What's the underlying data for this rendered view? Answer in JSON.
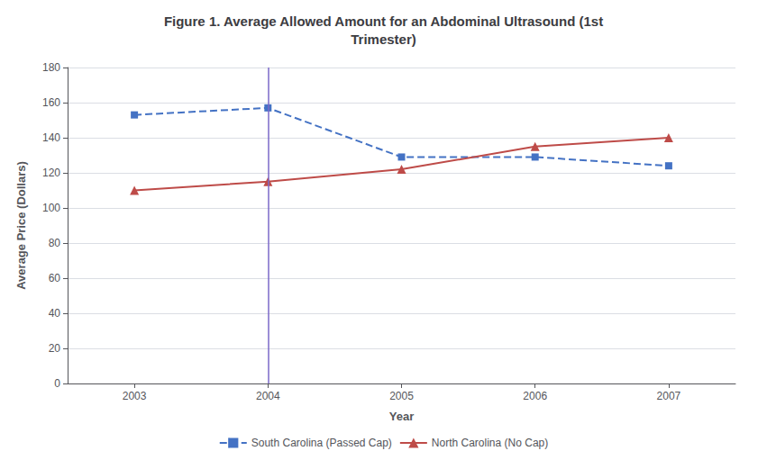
{
  "chart_data": {
    "type": "line",
    "title": "Figure 1. Average Allowed Amount for an Abdominal Ultrasound (1st\nTrimester)",
    "xlabel": "Year",
    "ylabel": "Average Price (Dollars)",
    "x": [
      2003,
      2004,
      2005,
      2006,
      2007
    ],
    "series": [
      {
        "name": "South Carolina (Passed Cap)",
        "color": "#4472C4",
        "values": [
          153,
          157,
          129,
          129,
          124
        ],
        "marker": "square",
        "line_style": "dashed"
      },
      {
        "name": "North Carolina (No Cap)",
        "color": "#BE4B48",
        "values": [
          110,
          115,
          122,
          135,
          140
        ],
        "marker": "triangle",
        "line_style": "solid"
      }
    ],
    "vline": {
      "x": 2004,
      "color": "#7B68C8"
    },
    "xlim": [
      2002.5,
      2007.5
    ],
    "xticks": [
      2003,
      2004,
      2005,
      2006,
      2007
    ],
    "ylim": [
      0,
      180
    ],
    "yticks": [
      0,
      20,
      40,
      60,
      80,
      100,
      120,
      140,
      160,
      180
    ],
    "grid": "y",
    "legend": "bottom"
  }
}
